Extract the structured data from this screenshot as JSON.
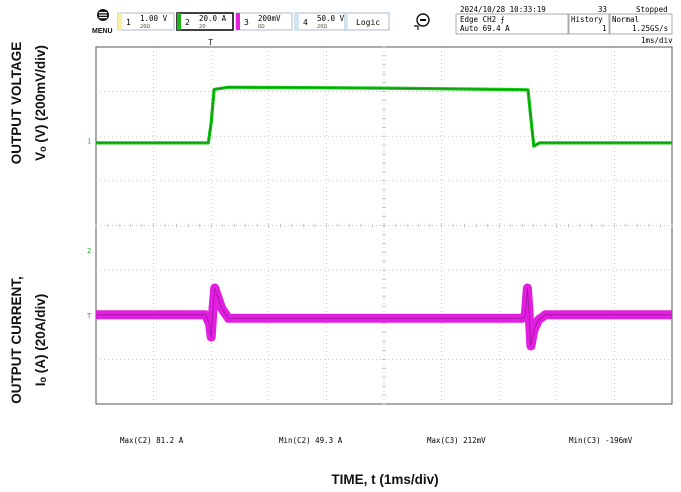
{
  "header": {
    "menu_label": "MENU",
    "channels": [
      {
        "num": "1",
        "value": "1.00 V",
        "sub": "20Ω",
        "color": "#f6f0a0"
      },
      {
        "num": "2",
        "value": "20.0 A",
        "sub": "20",
        "color": "#1db31d"
      },
      {
        "num": "3",
        "value": "200mV",
        "sub": "ΩΩ",
        "color": "#e61fdc"
      },
      {
        "num": "4",
        "value": "50.0 V",
        "sub": "20Ω",
        "color": "#cfe6f5"
      }
    ],
    "logic_label": "Logic",
    "datetime": "2024/10/28 10:33:19",
    "trigger_line1": "Edge CH2 ⨍",
    "trigger_line2": "Auto 69.4 A",
    "history_label": "History",
    "history_count": "33",
    "history_index": "1",
    "status": "Stopped",
    "mode": "Normal",
    "sample_rate": "1.25GS/s",
    "timebase": "1ms/div"
  },
  "measurements": [
    {
      "label": "Max(C2)",
      "value": "81.2 A"
    },
    {
      "label": "Min(C2)",
      "value": "49.3 A"
    },
    {
      "label": "Max(C3)",
      "value": "212mV"
    },
    {
      "label": "Min(C3)",
      "value": "-196mV"
    }
  ],
  "axis_labels": {
    "voltage_line1": "OUTPUT VOLTAGE",
    "voltage_line2": "Vₒ (V) (200mV/div)",
    "current_line1": "OUTPUT CURRENT,",
    "current_line2": "Iₒ (A) (20A/div)",
    "time": "TIME, t (1ms/div)"
  },
  "chart_data": {
    "type": "line",
    "x_unit": "ms",
    "xlim": [
      0,
      10
    ],
    "divisions": {
      "x": 10,
      "y": 8
    },
    "grid": true,
    "series": [
      {
        "color": "#12c412",
        "points": [
          [
            0,
            5.85
          ],
          [
            1.0,
            5.85
          ],
          [
            1.95,
            5.85
          ],
          [
            2.0,
            6.3
          ],
          [
            2.05,
            7.05
          ],
          [
            2.3,
            7.1
          ],
          [
            5.0,
            7.08
          ],
          [
            7.0,
            7.05
          ],
          [
            7.5,
            7.04
          ],
          [
            7.55,
            6.4
          ],
          [
            7.6,
            5.78
          ],
          [
            7.7,
            5.85
          ],
          [
            10,
            5.85
          ]
        ]
      },
      {
        "color": "#e21ee0",
        "points": [
          [
            0,
            2.0
          ],
          [
            1.9,
            2.0
          ],
          [
            1.97,
            1.8
          ],
          [
            2.0,
            1.5
          ],
          [
            2.03,
            2.1
          ],
          [
            2.06,
            2.6
          ],
          [
            2.1,
            2.45
          ],
          [
            2.18,
            2.15
          ],
          [
            2.3,
            1.92
          ],
          [
            2.5,
            1.92
          ],
          [
            5.0,
            1.92
          ],
          [
            7.4,
            1.92
          ],
          [
            7.45,
            1.95
          ],
          [
            7.49,
            2.6
          ],
          [
            7.52,
            2.0
          ],
          [
            7.55,
            1.3
          ],
          [
            7.6,
            1.65
          ],
          [
            7.68,
            1.88
          ],
          [
            7.8,
            2.0
          ],
          [
            10,
            2.0
          ]
        ]
      }
    ],
    "markers": [
      {
        "text": "1",
        "color": "#12c412",
        "y": 5.9
      },
      {
        "text": "2",
        "color": "#12c412",
        "y": 3.45
      },
      {
        "text": "T",
        "color": "#e21ee0",
        "y": 2.0
      }
    ],
    "trigger_marker": {
      "text": "T",
      "x": 2.0
    }
  }
}
